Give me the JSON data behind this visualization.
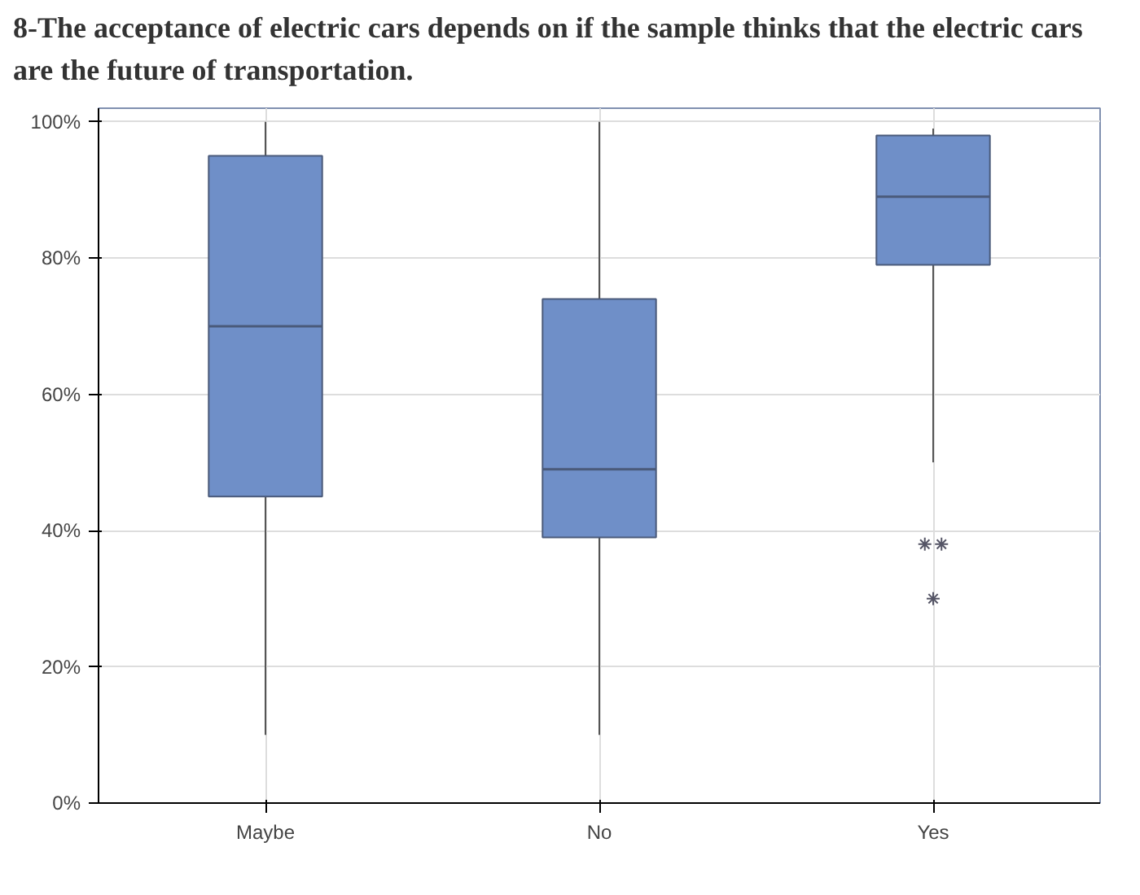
{
  "chart_data": {
    "type": "box",
    "title": "8-The acceptance of electric cars depends on if the sample thinks that the electric cars are the future of transportation.",
    "categories": [
      "Maybe",
      "No",
      "Yes"
    ],
    "boxes": [
      {
        "low": 10,
        "q1": 45,
        "median": 70,
        "q3": 95,
        "high": 100
      },
      {
        "low": 10,
        "q1": 39,
        "median": 49,
        "q3": 74,
        "high": 100
      },
      {
        "low": 50,
        "q1": 79,
        "median": 89,
        "q3": 98,
        "high": 99,
        "outliers": [
          38,
          38,
          30
        ]
      }
    ],
    "color": "#6f8fc8",
    "marker": "asterisk",
    "ylim": [
      0,
      102
    ],
    "yticks": [
      {
        "value": 0,
        "label": "0%"
      },
      {
        "value": 20,
        "label": "20%"
      },
      {
        "value": 40,
        "label": "40%"
      },
      {
        "value": 60,
        "label": "60%"
      },
      {
        "value": 80,
        "label": "80%"
      },
      {
        "value": 100,
        "label": "100%"
      }
    ],
    "grid": true
  }
}
